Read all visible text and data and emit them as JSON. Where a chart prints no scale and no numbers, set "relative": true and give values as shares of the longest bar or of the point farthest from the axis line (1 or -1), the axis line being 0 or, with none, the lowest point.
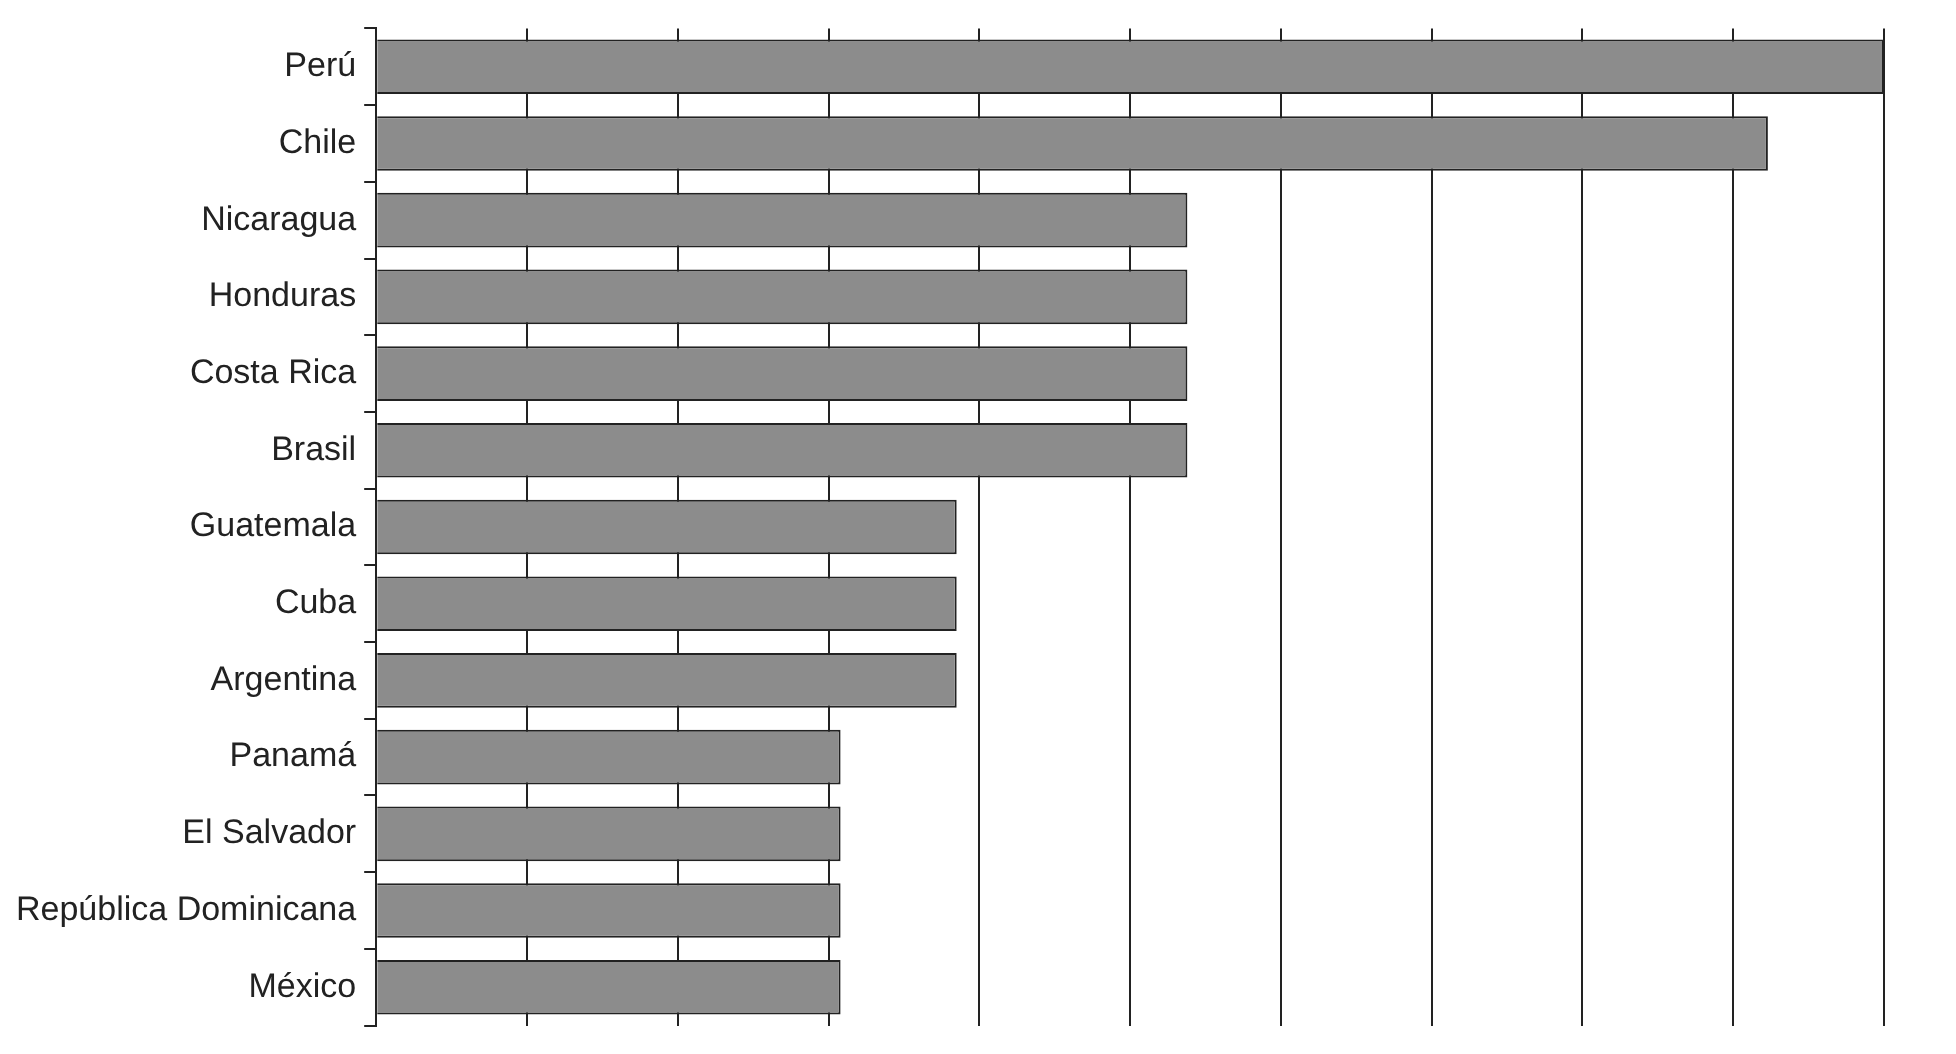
{
  "chart_data": {
    "type": "bar",
    "orientation": "horizontal",
    "relative": true,
    "grid": "x",
    "categories": [
      "Perú",
      "Chile",
      "Nicaragua",
      "Honduras",
      "Costa Rica",
      "Brasil",
      "Guatemala",
      "Cuba",
      "Argentina",
      "Panamá",
      "El Salvador",
      "República Dominicana",
      "México"
    ],
    "values": [
      1,
      0.923,
      0.538,
      0.538,
      0.538,
      0.538,
      0.385,
      0.385,
      0.385,
      0.308,
      0.308,
      0.308,
      0.308
    ],
    "color": "#8c8c8c"
  }
}
